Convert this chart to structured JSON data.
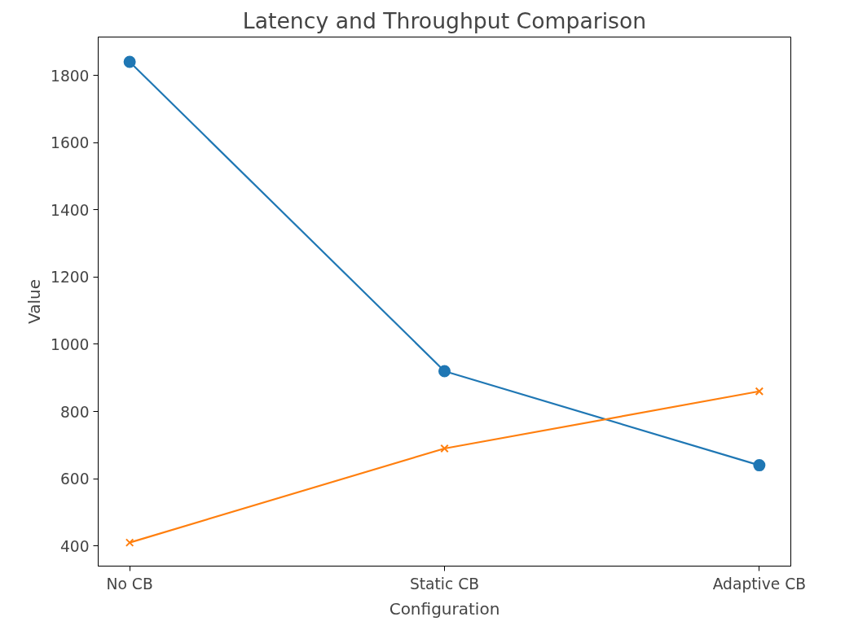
{
  "chart_data": {
    "type": "line",
    "title": "Latency and Throughput Comparison",
    "xlabel": "Configuration",
    "ylabel": "Value",
    "categories": [
      "No CB",
      "Static CB",
      "Adaptive CB"
    ],
    "series": [
      {
        "color": "#1f77b4",
        "marker": "circle",
        "values": [
          1840,
          920,
          640
        ]
      },
      {
        "color": "#ff7f0e",
        "marker": "cross",
        "values": [
          410,
          690,
          860
        ]
      }
    ],
    "ylim": [
      340,
      1914
    ],
    "yticks": [
      400,
      600,
      800,
      1000,
      1200,
      1400,
      1600,
      1800
    ],
    "grid": false
  }
}
